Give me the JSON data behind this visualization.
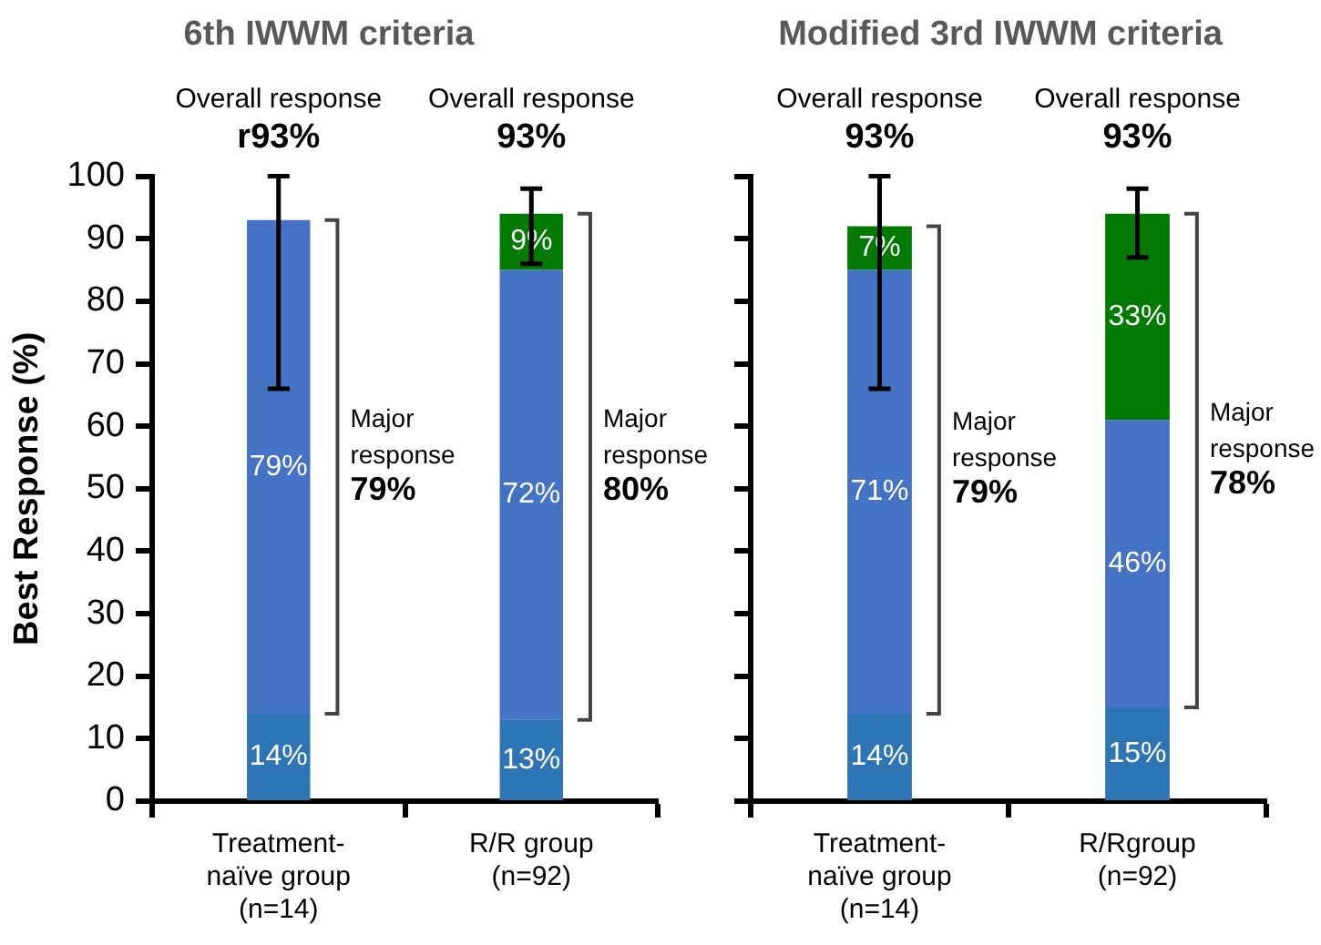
{
  "chart_data": [
    {
      "type": "bar",
      "title": "6th IWWM criteria",
      "ylabel": "Best Response (%)",
      "stacked": true,
      "grid": false,
      "categories": [
        "Treatment-\nnaïve group\n(n=14)",
        "R/R group\n(n=92)"
      ],
      "ylim": [
        0,
        100
      ],
      "yticks": [
        0,
        10,
        20,
        30,
        40,
        50,
        60,
        70,
        80,
        90,
        100
      ],
      "series": [
        {
          "color": "#2e75b6",
          "values": [
            14,
            13
          ],
          "value_labels": [
            "14%",
            "13%"
          ]
        },
        {
          "color": "#4472c4",
          "values": [
            79,
            72
          ],
          "value_labels": [
            "79%",
            "72%"
          ],
          "errors": [
            [
              66,
              100
            ],
            null
          ]
        },
        {
          "color": "#007a00",
          "values": [
            null,
            9
          ],
          "value_labels": [
            null,
            "9%"
          ],
          "errors": [
            null,
            [
              86,
              98
            ]
          ]
        }
      ],
      "annotations": [
        "Overall response\nr93%",
        "Major\nresponse\n79%",
        "Overall response\n93%",
        "Major\nresponse\n80%"
      ]
    },
    {
      "type": "bar",
      "title": "Modified 3rd IWWM criteria",
      "stacked": true,
      "grid": false,
      "tick_labels": "x",
      "categories": [
        "Treatment-\nnaïve group\n(n=14)",
        "R/Rgroup\n(n=92)"
      ],
      "ylim": [
        0,
        100
      ],
      "yticks": [
        0,
        10,
        20,
        30,
        40,
        50,
        60,
        70,
        80,
        90,
        100
      ],
      "series": [
        {
          "color": "#2e75b6",
          "values": [
            14,
            15
          ],
          "value_labels": [
            "14%",
            "15%"
          ]
        },
        {
          "color": "#4472c4",
          "values": [
            71,
            46
          ],
          "value_labels": [
            "71%",
            "46%"
          ]
        },
        {
          "color": "#007a00",
          "values": [
            7,
            33
          ],
          "value_labels": [
            "7%",
            "33%"
          ],
          "errors": [
            [
              66,
              100
            ],
            [
              87,
              98
            ]
          ]
        }
      ],
      "annotations": [
        "Overall response\n93%",
        "Major\nresponse\n79%",
        "Overall response\n93%",
        "Major\nresponse\n78%"
      ]
    }
  ]
}
